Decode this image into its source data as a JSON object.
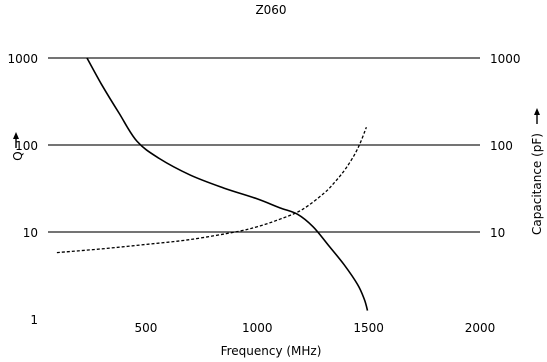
{
  "chart_data": {
    "type": "line",
    "title": "Z060",
    "xlabel": "Frequency (MHz)",
    "ylabel_left": "Q",
    "ylabel_right": "Capacitance (pF)",
    "x_ticks": [
      500,
      1000,
      1500,
      2000
    ],
    "xlim": [
      60,
      2000
    ],
    "y_scale": "log",
    "ylim": [
      1,
      1000
    ],
    "y_ticks_left": [
      1,
      10,
      100,
      1000
    ],
    "y_ticks_right": [
      10,
      100,
      1000
    ],
    "y_tick_labels_left": [
      "1",
      "10",
      "100",
      "1000"
    ],
    "y_tick_labels_right": [
      "10",
      "100",
      "1000"
    ],
    "grid": "horizontal",
    "series": [
      {
        "style": "solid",
        "axis": "left",
        "x": [
          235,
          300,
          380,
          460,
          560,
          700,
          850,
          1000,
          1100,
          1180,
          1250,
          1320,
          1390,
          1450,
          1480,
          1495
        ],
        "y": [
          1000,
          500,
          230,
          110,
          70,
          45,
          32,
          24,
          19,
          16,
          11.5,
          7,
          4.2,
          2.5,
          1.7,
          1.25
        ]
      },
      {
        "style": "dashed",
        "axis": "right",
        "x": [
          100,
          300,
          500,
          700,
          900,
          1000,
          1100,
          1200,
          1300,
          1350,
          1400,
          1450,
          1490
        ],
        "y": [
          5.8,
          6.4,
          7.2,
          8.2,
          10,
          11.5,
          14,
          18,
          28,
          38,
          55,
          90,
          160
        ]
      }
    ]
  }
}
